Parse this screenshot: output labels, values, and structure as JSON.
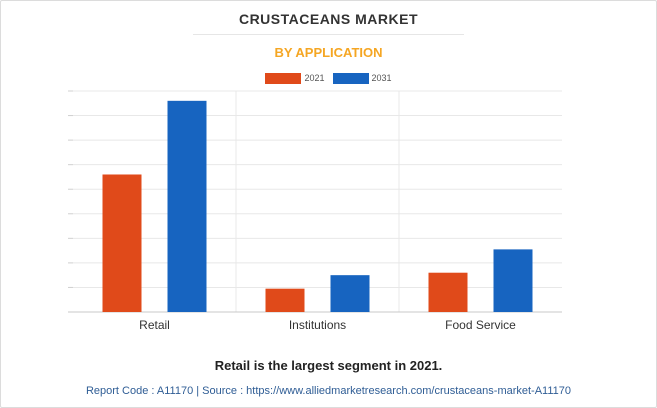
{
  "chart_data": {
    "type": "bar",
    "title": "CRUSTACEANS MARKET",
    "subtitle": "BY APPLICATION",
    "categories": [
      "Retail",
      "Institutions",
      "Food Service"
    ],
    "series": [
      {
        "name": "2021",
        "color": "#e04a1a",
        "values": [
          5.6,
          0.95,
          1.6
        ]
      },
      {
        "name": "2031",
        "color": "#1764c0",
        "values": [
          8.6,
          1.5,
          2.55
        ]
      }
    ],
    "ylim": [
      0,
      9
    ],
    "grid": true,
    "legend": "top-center",
    "xlabel": "",
    "ylabel": ""
  },
  "caption": "Retail is the largest segment in 2021.",
  "source": "Report Code : A11170  |  Source : https://www.alliedmarketresearch.com/crustaceans-market-A11170"
}
